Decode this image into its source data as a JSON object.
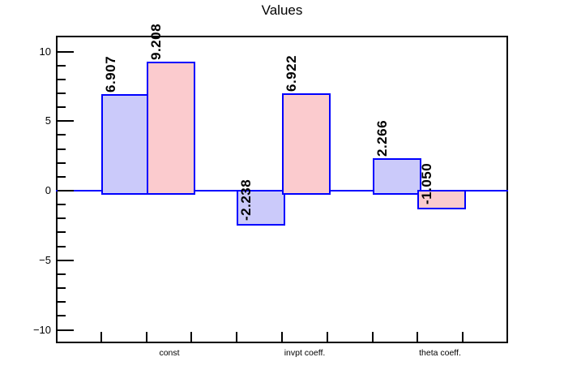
{
  "header": {
    "title": "Values"
  },
  "chart_data": {
    "type": "bar",
    "title": "Values",
    "xlabel": "",
    "ylabel": "",
    "grid": false,
    "legend": "none",
    "ylim": [
      -10.96,
      11.14
    ],
    "categories": [
      "const",
      "invpt coeff.",
      "theta coeff."
    ],
    "category_bins": [
      2,
      5,
      8
    ],
    "n_bins": 10,
    "x_tick_bins": [
      1,
      2,
      3,
      4,
      5,
      6,
      7,
      8,
      9
    ],
    "series": [
      {
        "name": "series-blue",
        "fill": "#cbcafa",
        "bins": [
          1,
          4,
          7
        ],
        "values": [
          6.907,
          -2.238,
          2.266
        ],
        "value_labels": [
          "6.907",
          "-2.238",
          "2.266"
        ]
      },
      {
        "name": "series-pink",
        "fill": "#fbcbce",
        "bins": [
          2,
          5,
          8
        ],
        "values": [
          9.208,
          6.922,
          -1.05
        ],
        "value_labels": [
          "9.208",
          "6.922",
          "-1.050"
        ]
      }
    ],
    "y_axis": {
      "major_ticks": [
        {
          "value": 10,
          "label": "10"
        },
        {
          "value": 5,
          "label": "5"
        },
        {
          "value": 0,
          "label": "0"
        },
        {
          "value": -5,
          "label": "−5"
        },
        {
          "value": -10,
          "label": "−10"
        }
      ],
      "minor_tick_min": -9,
      "minor_tick_max": 9,
      "minor_tick_step": 1
    },
    "colors": {
      "bar_border": "#0000ff",
      "zero_line": "#0000ff",
      "axis": "#000000",
      "text": "#000000",
      "background": "#ffffff"
    }
  }
}
